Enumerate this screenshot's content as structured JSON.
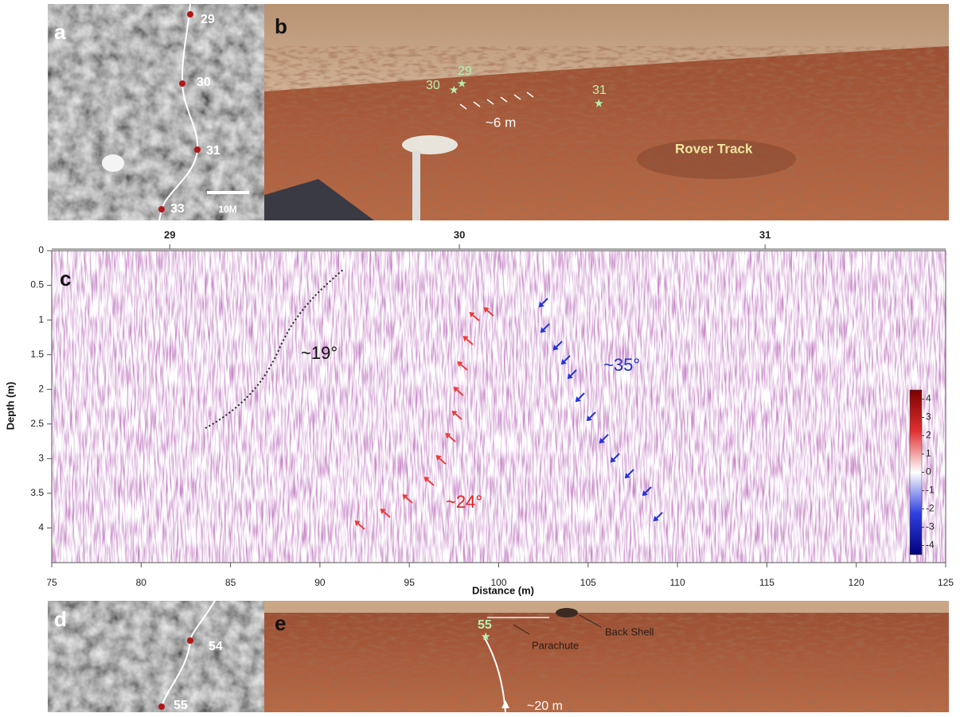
{
  "panel_a": {
    "letter": "a",
    "waypoints": [
      "29",
      "30",
      "31",
      "33"
    ],
    "scale": "10M"
  },
  "panel_b": {
    "letter": "b",
    "waypoints": [
      "29",
      "30",
      "31"
    ],
    "distance": "~6 m",
    "track": "Rover Track"
  },
  "panel_c": {
    "letter": "c",
    "top_ticks": [
      {
        "value": 81.6,
        "label": "29"
      },
      {
        "value": 97.8,
        "label": "30"
      },
      {
        "value": 114.9,
        "label": "31"
      }
    ],
    "xlabel": "Distance (m)",
    "ylabel": "Depth (m)",
    "xlim": [
      75,
      125
    ],
    "xticks": [
      75,
      80,
      85,
      90,
      95,
      100,
      105,
      110,
      115,
      120,
      125
    ],
    "ylim": [
      0,
      4.5
    ],
    "yticks": [
      0,
      0.5,
      1,
      1.5,
      2,
      2.5,
      3,
      3.5,
      4
    ],
    "angles": [
      "~19°",
      "~24°",
      "~35°"
    ],
    "colorbar": {
      "lim": [
        -4.5,
        4.5
      ],
      "ticks": [
        4,
        3,
        2,
        1,
        0,
        -1,
        -2,
        -3,
        -4
      ]
    }
  },
  "panel_d": {
    "letter": "d",
    "waypoints": [
      "54",
      "55"
    ]
  },
  "panel_e": {
    "letter": "e",
    "waypoint": "55",
    "parachute": "Parachute",
    "back_shell": "Back Shell",
    "distance": "~20 m"
  }
}
